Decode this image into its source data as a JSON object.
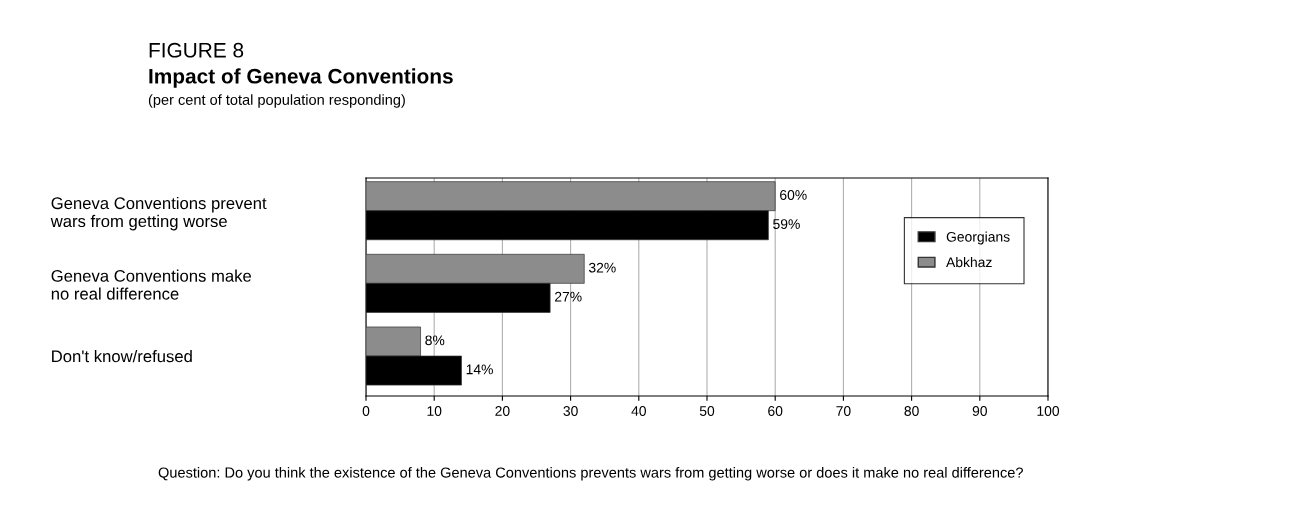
{
  "chart_data": {
    "type": "bar",
    "orientation": "horizontal",
    "title": "Impact of Geneva Conventions",
    "subtitle": "(per cent of total population responding)",
    "annotations": [
      "FIGURE 8",
      "Question: Do you think the existence of the Geneva Conventions prevents wars from getting worse or does it make no real difference?"
    ],
    "categories": [
      "Geneva Conventions prevent\nwars from getting worse",
      "Geneva Conventions make\nno real difference",
      "Don't know/refused"
    ],
    "series": [
      {
        "name": "Abkhaz",
        "color": "#8c8c8c",
        "values": [
          60,
          32,
          8
        ],
        "value_labels": [
          "60%",
          "32%",
          "8%"
        ]
      },
      {
        "name": "Georgians",
        "color": "#000000",
        "values": [
          59,
          27,
          14
        ],
        "value_labels": [
          "59%",
          "27%",
          "14%"
        ]
      }
    ],
    "xlim": [
      0,
      100
    ],
    "xticks": [
      0,
      10,
      20,
      30,
      40,
      50,
      60,
      70,
      80,
      90,
      100
    ],
    "grid": "x",
    "legend": "top right"
  }
}
